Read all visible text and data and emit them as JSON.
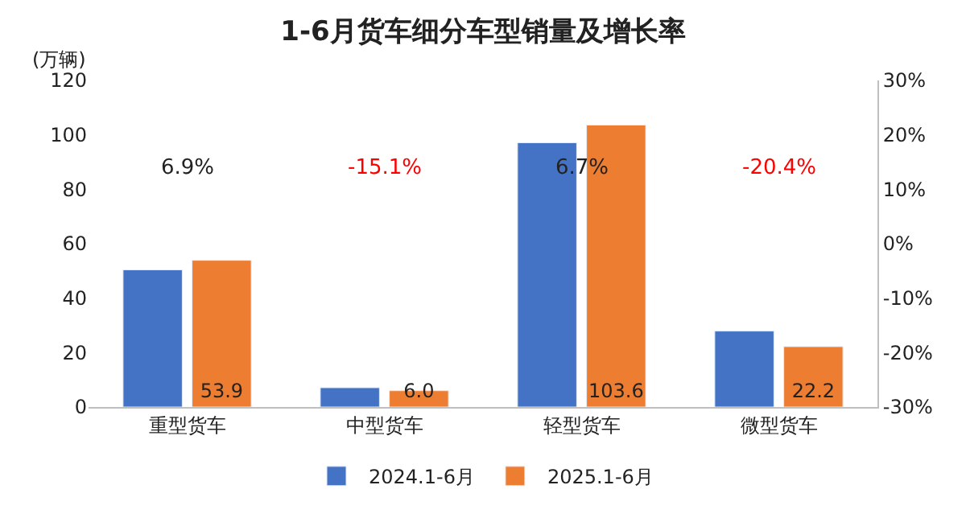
{
  "chart_data": {
    "type": "bar",
    "title": "1-6月货车细分车型销量及增长率",
    "ylabel": "(万辆)",
    "categories": [
      "重型货车",
      "中型货车",
      "轻型货车",
      "微型货车"
    ],
    "series": [
      {
        "name": "2024.1-6月",
        "color": "#4472c4",
        "values": [
          50.4,
          7.1,
          97.1,
          27.9
        ]
      },
      {
        "name": "2025.1-6月",
        "color": "#ed7d31",
        "values": [
          53.9,
          6.0,
          103.6,
          22.2
        ],
        "value_labels": [
          "53.9",
          "6.0",
          "103.6",
          "22.2"
        ]
      }
    ],
    "ylim": [
      0,
      120
    ],
    "yticks": [
      0,
      20,
      40,
      60,
      80,
      100,
      120
    ],
    "y2lim": [
      -30,
      30
    ],
    "y2ticks": [
      {
        "value": 30,
        "label": "30%"
      },
      {
        "value": 20,
        "label": "20%"
      },
      {
        "value": 10,
        "label": "10%"
      },
      {
        "value": 0,
        "label": "0%"
      },
      {
        "value": -10,
        "label": "-10%"
      },
      {
        "value": -20,
        "label": "-20%"
      },
      {
        "value": -30,
        "label": "-30%"
      }
    ],
    "annotations": [
      "6.9%",
      "-15.1%",
      "6.7%",
      "-20.4%"
    ],
    "legend": "bottom"
  }
}
